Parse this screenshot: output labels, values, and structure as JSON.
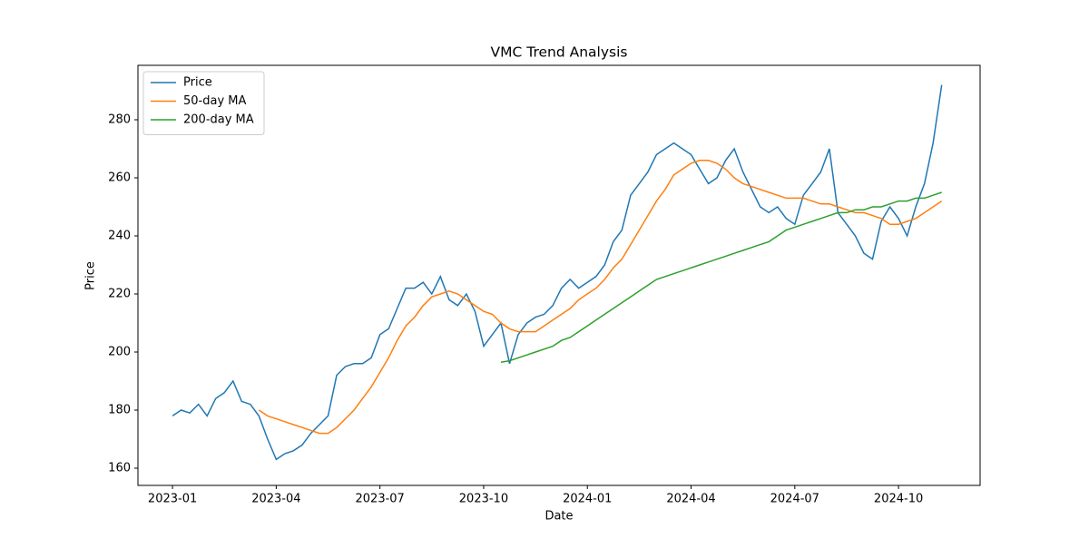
{
  "chart_data": {
    "type": "line",
    "title": "VMC Trend Analysis",
    "x_label": "Date",
    "y_label": "Price",
    "x": [
      0,
      0.25,
      0.5,
      0.75,
      1,
      1.25,
      1.5,
      1.75,
      2,
      2.25,
      2.5,
      2.75,
      3,
      3.25,
      3.5,
      3.75,
      4,
      4.25,
      4.5,
      4.75,
      5,
      5.25,
      5.5,
      5.75,
      6,
      6.25,
      6.5,
      6.75,
      7,
      7.25,
      7.5,
      7.75,
      8,
      8.25,
      8.5,
      8.75,
      9,
      9.25,
      9.5,
      9.75,
      10,
      10.25,
      10.5,
      10.75,
      11,
      11.25,
      11.5,
      11.75,
      12,
      12.25,
      12.5,
      12.75,
      13,
      13.25,
      13.5,
      13.75,
      14,
      14.25,
      14.5,
      14.75,
      15,
      15.25,
      15.5,
      15.75,
      16,
      16.25,
      16.5,
      16.75,
      17,
      17.25,
      17.5,
      17.75,
      18,
      18.25,
      18.5,
      18.75,
      19,
      19.25,
      19.5,
      19.75,
      20,
      20.25,
      20.5,
      20.75,
      21,
      21.25,
      21.5,
      21.75,
      22,
      22.25
    ],
    "series": [
      {
        "name": "Price",
        "color": "#1f77b4",
        "values": [
          178,
          180,
          179,
          182,
          178,
          184,
          186,
          190,
          183,
          182,
          178,
          170,
          163,
          165,
          166,
          168,
          172,
          175,
          178,
          192,
          195,
          196,
          196,
          198,
          206,
          208,
          215,
          222,
          222,
          224,
          220,
          226,
          218,
          216,
          220,
          214,
          202,
          206,
          210,
          196,
          206,
          210,
          212,
          213,
          216,
          222,
          225,
          222,
          224,
          226,
          230,
          238,
          242,
          254,
          258,
          262,
          268,
          270,
          272,
          270,
          268,
          263,
          258,
          260,
          266,
          270,
          262,
          256,
          250,
          248,
          250,
          246,
          244,
          254,
          258,
          262,
          270,
          248,
          244,
          240,
          234,
          232,
          245,
          250,
          246,
          240,
          250,
          258,
          272,
          292
        ]
      },
      {
        "name": "50-day MA",
        "color": "#ff7f0e",
        "values": [
          null,
          null,
          null,
          null,
          null,
          null,
          null,
          null,
          null,
          null,
          180,
          178,
          177,
          176,
          175,
          174,
          173,
          172,
          172,
          174,
          177,
          180,
          184,
          188,
          193,
          198,
          204,
          209,
          212,
          216,
          219,
          220,
          221,
          220,
          218,
          216,
          214,
          213,
          210,
          208,
          207,
          207,
          207,
          209,
          211,
          213,
          215,
          218,
          220,
          222,
          225,
          229,
          232,
          237,
          242,
          247,
          252,
          256,
          261,
          263,
          265,
          266,
          266,
          265,
          263,
          260,
          258,
          257,
          256,
          255,
          254,
          253,
          253,
          253,
          252,
          251,
          251,
          250,
          249,
          248,
          248,
          247,
          246,
          244,
          244,
          245,
          246,
          248,
          250,
          252
        ]
      },
      {
        "name": "200-day MA",
        "color": "#2ca02c",
        "values": [
          null,
          null,
          null,
          null,
          null,
          null,
          null,
          null,
          null,
          null,
          null,
          null,
          null,
          null,
          null,
          null,
          null,
          null,
          null,
          null,
          null,
          null,
          null,
          null,
          null,
          null,
          null,
          null,
          null,
          null,
          null,
          null,
          null,
          null,
          null,
          null,
          null,
          null,
          196.5,
          197,
          198,
          199,
          200,
          201,
          202,
          204,
          205,
          207,
          209,
          211,
          213,
          215,
          217,
          219,
          221,
          223,
          225,
          226,
          227,
          228,
          229,
          230,
          231,
          232,
          233,
          234,
          235,
          236,
          237,
          238,
          240,
          242,
          243,
          244,
          245,
          246,
          247,
          248,
          248,
          249,
          249,
          250,
          250,
          251,
          252,
          252,
          253,
          253,
          254,
          255
        ]
      }
    ],
    "xlim": [
      -1.0,
      23.36
    ],
    "xticks": [
      {
        "value": 0,
        "label": "2023-01"
      },
      {
        "value": 3,
        "label": "2023-04"
      },
      {
        "value": 6,
        "label": "2023-07"
      },
      {
        "value": 9,
        "label": "2023-10"
      },
      {
        "value": 12,
        "label": "2024-01"
      },
      {
        "value": 15,
        "label": "2024-04"
      },
      {
        "value": 18,
        "label": "2024-07"
      },
      {
        "value": 21,
        "label": "2024-10"
      }
    ],
    "ylim": [
      154.06,
      298.75
    ],
    "yticks": [
      160,
      180,
      200,
      220,
      240,
      260,
      280
    ],
    "grid": false,
    "legend": "upper left"
  }
}
